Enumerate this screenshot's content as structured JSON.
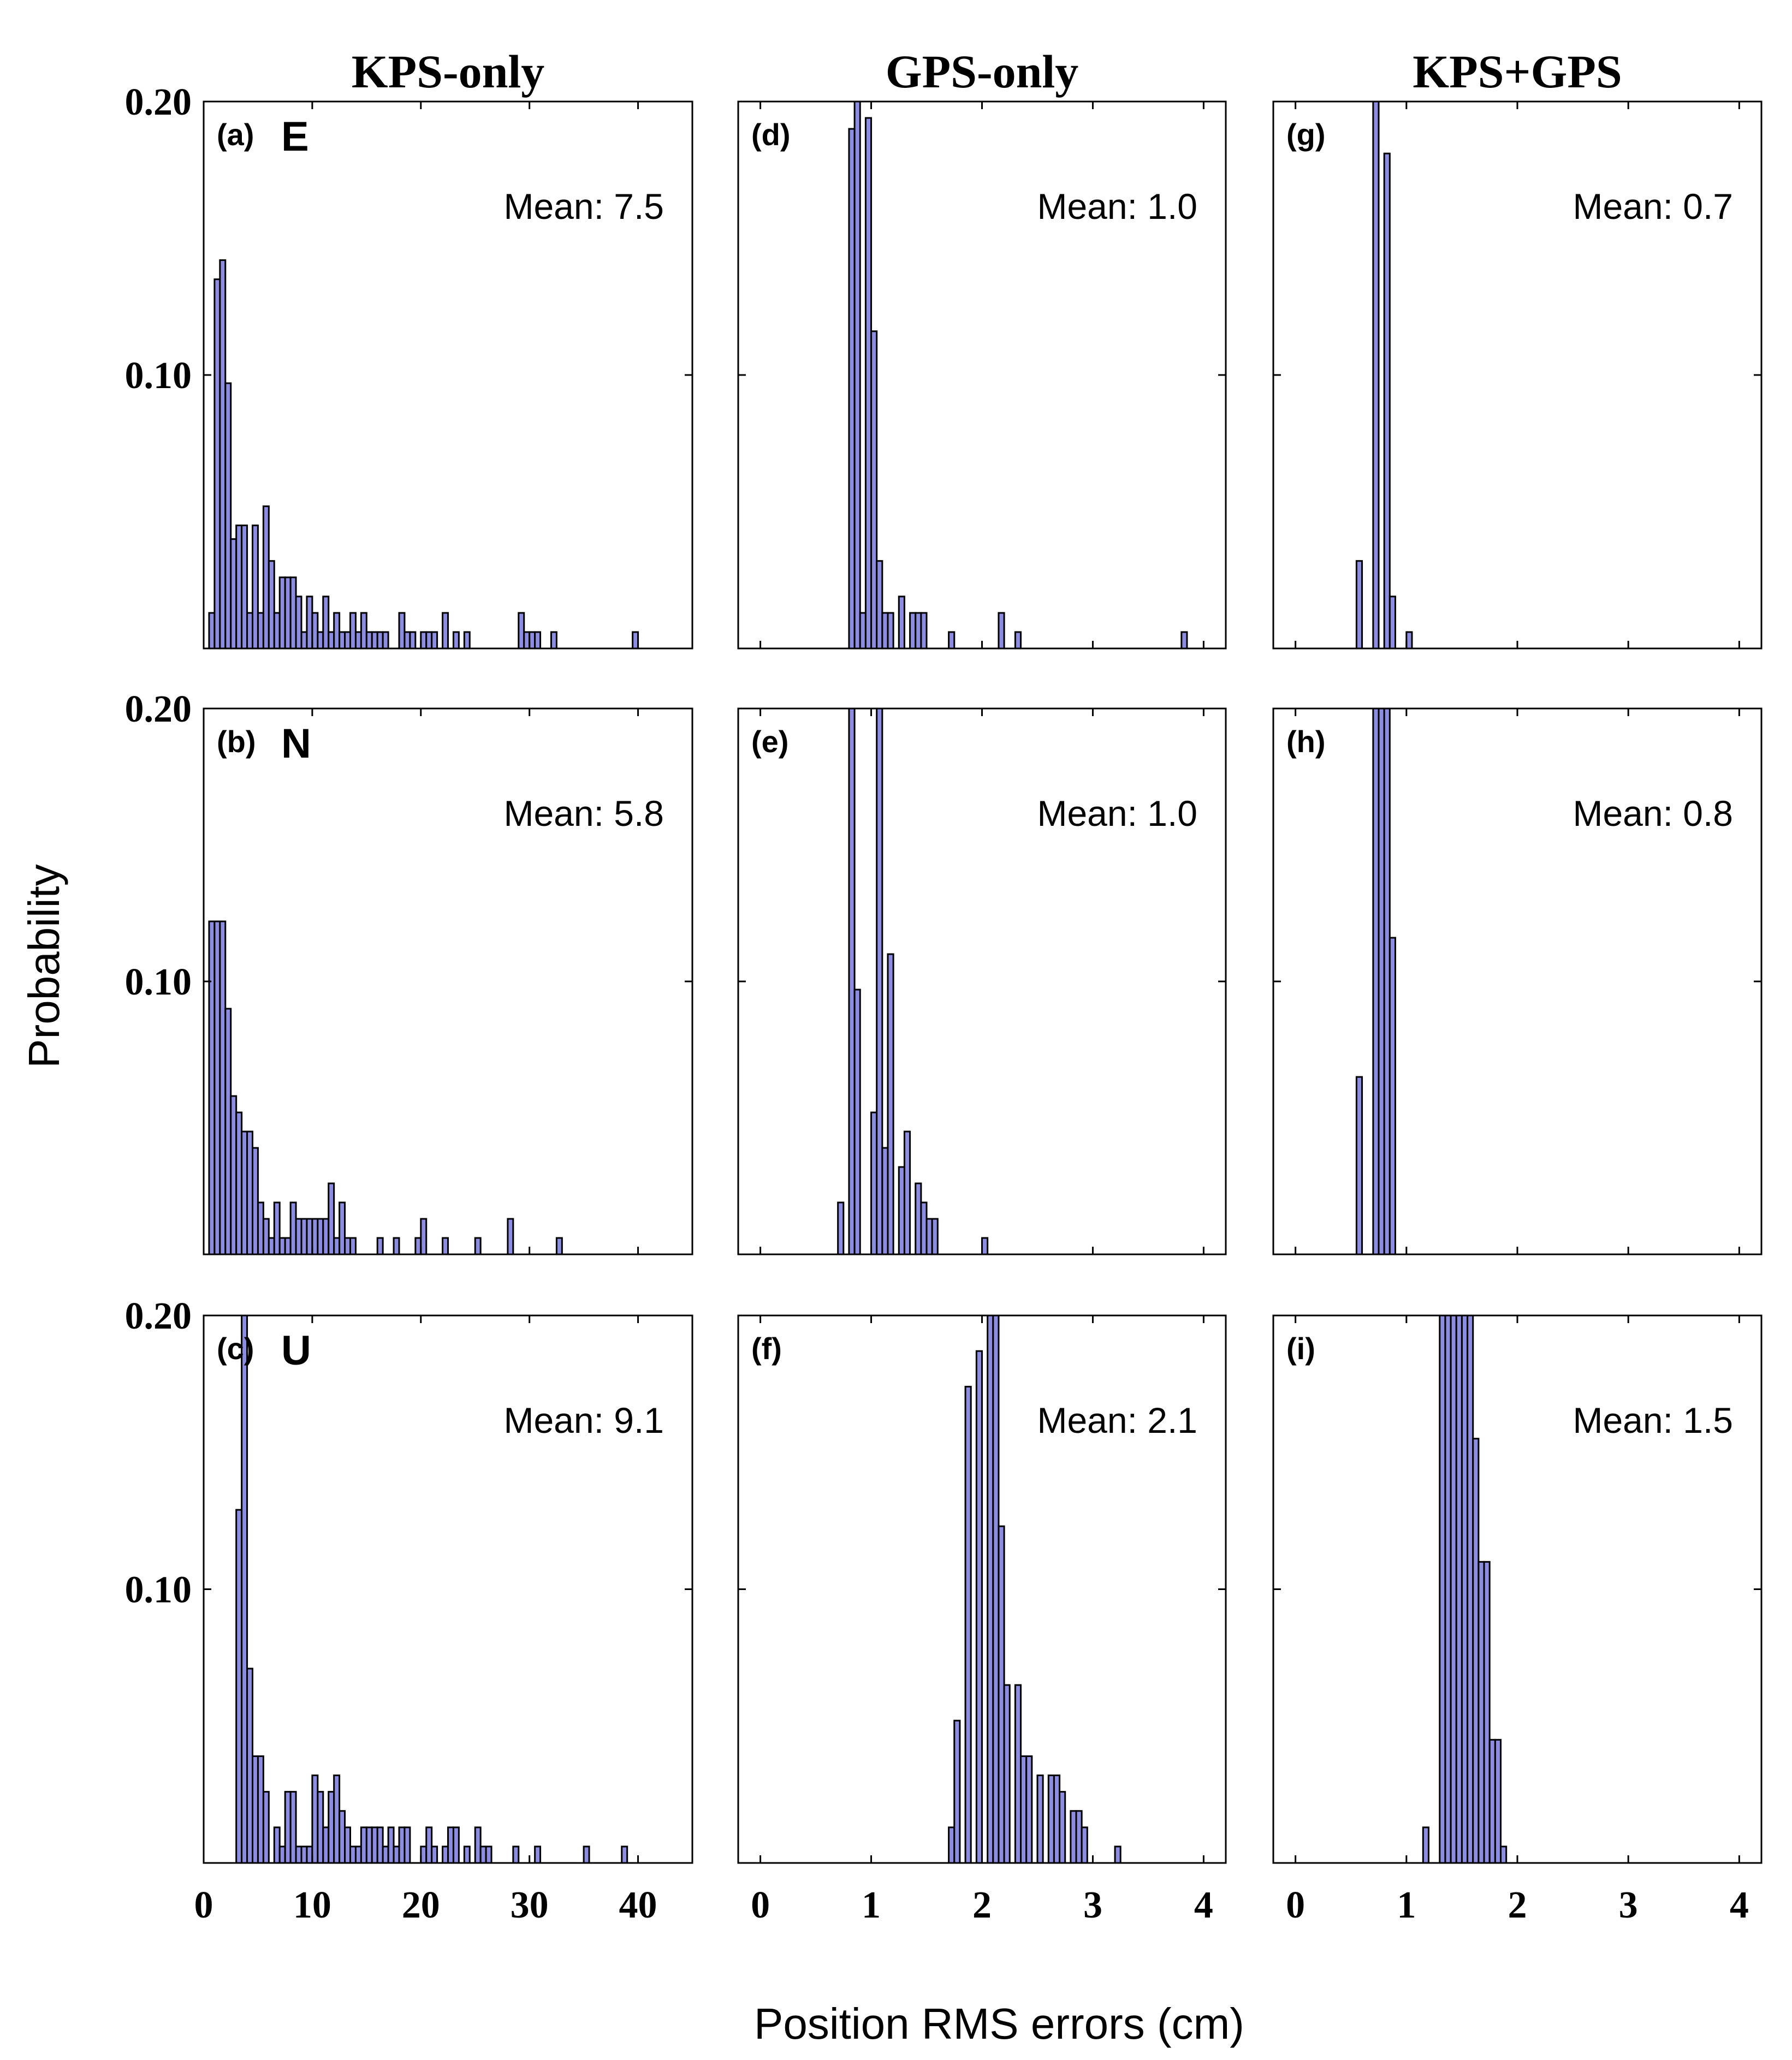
{
  "figure": {
    "ylabel": "Probability",
    "xlabel": "Position RMS errors (cm)",
    "colors": {
      "bar_fill": "#8c8ce0",
      "bar_stroke": "#000000",
      "frame": "#000000"
    }
  },
  "chart_data": [
    {
      "type": "bar",
      "panel": "(a)",
      "component": "E",
      "column_title": "KPS-only",
      "mean_label": "Mean: 7.5",
      "xlim": [
        0,
        45
      ],
      "ylim": [
        0,
        0.2
      ],
      "xticks": [
        "0",
        "10",
        "20",
        "30",
        "40"
      ],
      "yticks": [
        "0.10",
        "0.20"
      ],
      "bin_width": 0.5,
      "x": [
        0.75,
        1.25,
        1.75,
        2.25,
        2.75,
        3.25,
        3.75,
        4.25,
        4.75,
        5.25,
        5.75,
        6.25,
        6.75,
        7.25,
        7.75,
        8.25,
        8.75,
        9.25,
        9.75,
        10.25,
        10.75,
        11.25,
        11.75,
        12.25,
        12.75,
        13.25,
        13.75,
        14.25,
        14.75,
        15.25,
        15.75,
        16.25,
        16.75,
        18.25,
        18.75,
        19.25,
        20.25,
        20.75,
        21.25,
        22.25,
        23.25,
        24.25,
        29.25,
        29.75,
        30.25,
        30.75,
        32.25,
        39.75
      ],
      "values": [
        0.013,
        0.135,
        0.142,
        0.097,
        0.04,
        0.045,
        0.045,
        0.013,
        0.045,
        0.013,
        0.052,
        0.032,
        0.013,
        0.026,
        0.026,
        0.026,
        0.019,
        0.006,
        0.019,
        0.013,
        0.006,
        0.019,
        0.006,
        0.013,
        0.006,
        0.006,
        0.013,
        0.006,
        0.013,
        0.006,
        0.006,
        0.006,
        0.006,
        0.013,
        0.006,
        0.006,
        0.006,
        0.006,
        0.006,
        0.013,
        0.006,
        0.006,
        0.013,
        0.006,
        0.006,
        0.006,
        0.006,
        0.006
      ]
    },
    {
      "type": "bar",
      "panel": "(b)",
      "component": "N",
      "column_title": "KPS-only",
      "mean_label": "Mean: 5.8",
      "xlim": [
        0,
        45
      ],
      "ylim": [
        0,
        0.2
      ],
      "xticks": [
        "0",
        "10",
        "20",
        "30",
        "40"
      ],
      "yticks": [
        "0.10",
        "0.20"
      ],
      "bin_width": 0.5,
      "x": [
        0.75,
        1.25,
        1.75,
        2.25,
        2.75,
        3.25,
        3.75,
        4.25,
        4.75,
        5.25,
        5.75,
        6.25,
        6.75,
        7.25,
        7.75,
        8.25,
        8.75,
        9.25,
        9.75,
        10.25,
        10.75,
        11.25,
        11.75,
        12.25,
        12.75,
        13.25,
        13.75,
        16.25,
        17.75,
        19.75,
        20.25,
        22.25,
        25.25,
        28.25,
        32.75
      ],
      "values": [
        0.122,
        0.122,
        0.122,
        0.09,
        0.058,
        0.052,
        0.045,
        0.045,
        0.039,
        0.019,
        0.013,
        0.006,
        0.019,
        0.006,
        0.006,
        0.019,
        0.013,
        0.013,
        0.013,
        0.013,
        0.013,
        0.013,
        0.026,
        0.006,
        0.019,
        0.006,
        0.006,
        0.006,
        0.006,
        0.006,
        0.013,
        0.006,
        0.006,
        0.013,
        0.006
      ]
    },
    {
      "type": "bar",
      "panel": "(c)",
      "component": "U",
      "column_title": "KPS-only",
      "mean_label": "Mean: 9.1",
      "xlim": [
        0,
        45
      ],
      "ylim": [
        0,
        0.2
      ],
      "xticks": [
        "0",
        "10",
        "20",
        "30",
        "40"
      ],
      "yticks": [
        "0.10",
        "0.20"
      ],
      "xlabel_shown": true,
      "bin_width": 0.5,
      "x": [
        3.25,
        3.75,
        4.25,
        4.75,
        5.25,
        5.75,
        6.75,
        7.25,
        7.75,
        8.25,
        8.75,
        9.25,
        9.75,
        10.25,
        10.75,
        11.25,
        11.75,
        12.25,
        12.75,
        13.25,
        13.75,
        14.25,
        14.75,
        15.25,
        15.75,
        16.25,
        16.75,
        17.25,
        17.75,
        18.25,
        18.75,
        20.25,
        20.75,
        21.25,
        22.25,
        22.75,
        23.25,
        24.25,
        25.25,
        25.75,
        26.25,
        28.75,
        30.75,
        35.25,
        38.75
      ],
      "values": [
        0.129,
        0.2,
        0.071,
        0.039,
        0.039,
        0.026,
        0.013,
        0.006,
        0.026,
        0.026,
        0.006,
        0.006,
        0.006,
        0.032,
        0.026,
        0.013,
        0.026,
        0.032,
        0.019,
        0.013,
        0.006,
        0.006,
        0.013,
        0.013,
        0.013,
        0.013,
        0.006,
        0.013,
        0.006,
        0.013,
        0.013,
        0.006,
        0.013,
        0.006,
        0.006,
        0.013,
        0.013,
        0.006,
        0.013,
        0.006,
        0.006,
        0.006,
        0.006,
        0.006,
        0.006
      ]
    },
    {
      "type": "bar",
      "panel": "(d)",
      "component": "",
      "column_title": "GPS-only",
      "mean_label": "Mean: 1.0",
      "xlim": [
        -0.2,
        4.2
      ],
      "ylim": [
        0,
        0.2
      ],
      "xticks": [
        "0",
        "1",
        "2",
        "3",
        "4"
      ],
      "bin_width": 0.05,
      "x": [
        0.825,
        0.875,
        0.925,
        0.975,
        1.025,
        1.075,
        1.125,
        1.175,
        1.275,
        1.375,
        1.425,
        1.475,
        1.725,
        2.175,
        2.325,
        3.825
      ],
      "values": [
        0.19,
        0.2,
        0.013,
        0.194,
        0.116,
        0.032,
        0.013,
        0.013,
        0.019,
        0.013,
        0.013,
        0.013,
        0.006,
        0.013,
        0.006,
        0.006
      ]
    },
    {
      "type": "bar",
      "panel": "(e)",
      "component": "",
      "column_title": "GPS-only",
      "mean_label": "Mean: 1.0",
      "xlim": [
        -0.2,
        4.2
      ],
      "ylim": [
        0,
        0.2
      ],
      "xticks": [
        "0",
        "1",
        "2",
        "3",
        "4"
      ],
      "bin_width": 0.05,
      "x": [
        0.725,
        0.825,
        0.875,
        1.025,
        1.075,
        1.125,
        1.175,
        1.275,
        1.325,
        1.425,
        1.475,
        1.525,
        1.575,
        2.025
      ],
      "values": [
        0.019,
        0.2,
        0.097,
        0.052,
        0.2,
        0.039,
        0.11,
        0.032,
        0.045,
        0.026,
        0.019,
        0.013,
        0.013,
        0.006
      ]
    },
    {
      "type": "bar",
      "panel": "(f)",
      "component": "",
      "column_title": "GPS-only",
      "mean_label": "Mean: 2.1",
      "xlim": [
        -0.2,
        4.2
      ],
      "ylim": [
        0,
        0.2
      ],
      "xticks": [
        "0",
        "1",
        "2",
        "3",
        "4"
      ],
      "xlabel_shown": true,
      "bin_width": 0.05,
      "x": [
        1.725,
        1.775,
        1.875,
        1.975,
        2.075,
        2.125,
        2.175,
        2.225,
        2.325,
        2.375,
        2.425,
        2.525,
        2.625,
        2.675,
        2.725,
        2.825,
        2.875,
        2.925,
        3.225
      ],
      "values": [
        0.013,
        0.052,
        0.174,
        0.187,
        0.2,
        0.2,
        0.123,
        0.065,
        0.065,
        0.039,
        0.039,
        0.032,
        0.032,
        0.032,
        0.026,
        0.019,
        0.019,
        0.013,
        0.006
      ]
    },
    {
      "type": "bar",
      "panel": "(g)",
      "component": "",
      "column_title": "KPS+GPS",
      "mean_label": "Mean: 0.7",
      "xlim": [
        -0.2,
        4.2
      ],
      "ylim": [
        0,
        0.2
      ],
      "xticks": [
        "0",
        "1",
        "2",
        "3",
        "4"
      ],
      "bin_width": 0.05,
      "x": [
        0.575,
        0.725,
        0.825,
        0.875,
        1.025
      ],
      "values": [
        0.032,
        0.2,
        0.181,
        0.019,
        0.006
      ]
    },
    {
      "type": "bar",
      "panel": "(h)",
      "component": "",
      "column_title": "KPS+GPS",
      "mean_label": "Mean: 0.8",
      "xlim": [
        -0.2,
        4.2
      ],
      "ylim": [
        0,
        0.2
      ],
      "xticks": [
        "0",
        "1",
        "2",
        "3",
        "4"
      ],
      "bin_width": 0.05,
      "x": [
        0.575,
        0.725,
        0.775,
        0.825,
        0.875
      ],
      "values": [
        0.065,
        0.2,
        0.2,
        0.2,
        0.116
      ]
    },
    {
      "type": "bar",
      "panel": "(i)",
      "component": "",
      "column_title": "KPS+GPS",
      "mean_label": "Mean: 1.5",
      "xlim": [
        -0.2,
        4.2
      ],
      "ylim": [
        0,
        0.2
      ],
      "xticks": [
        "0",
        "1",
        "2",
        "3",
        "4"
      ],
      "xlabel_shown": true,
      "bin_width": 0.05,
      "x": [
        1.175,
        1.325,
        1.375,
        1.425,
        1.475,
        1.525,
        1.575,
        1.625,
        1.675,
        1.725,
        1.775,
        1.825,
        1.875
      ],
      "values": [
        0.013,
        0.2,
        0.2,
        0.2,
        0.2,
        0.2,
        0.2,
        0.155,
        0.11,
        0.11,
        0.045,
        0.045,
        0.006
      ]
    }
  ]
}
